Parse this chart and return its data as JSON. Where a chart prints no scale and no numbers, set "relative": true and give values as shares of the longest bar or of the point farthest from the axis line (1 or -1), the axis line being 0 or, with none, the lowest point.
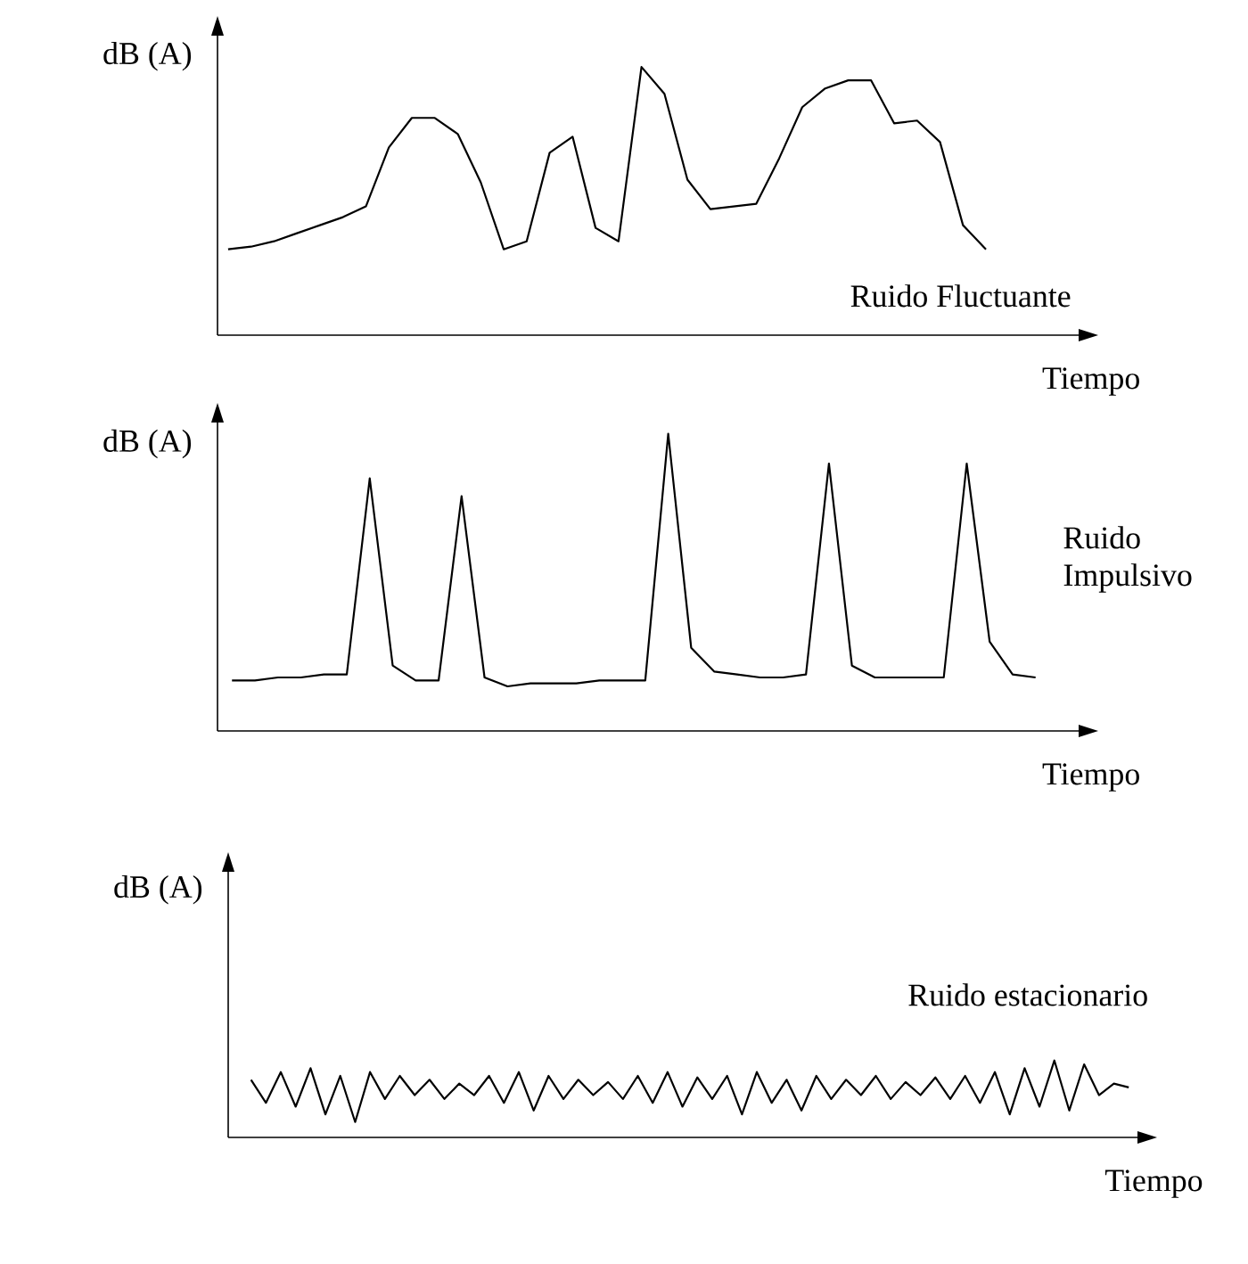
{
  "chart_data": [
    {
      "type": "line",
      "relative": true,
      "ylabel": "dB (A)",
      "xlabel": "Tiempo",
      "categories": [
        null,
        null,
        null,
        null,
        null,
        null,
        null,
        null,
        null,
        null,
        null,
        null,
        null,
        null,
        null,
        null,
        null,
        null,
        null,
        null,
        null,
        null,
        null,
        null,
        null,
        null,
        null,
        null,
        null,
        null,
        null,
        null,
        null,
        null
      ],
      "series": [
        {
          "name": "Ruido Fluctuante",
          "color": "#000000",
          "values": [
            0.32,
            0.33,
            0.35,
            0.38,
            0.41,
            0.44,
            0.48,
            0.7,
            0.81,
            0.81,
            0.75,
            0.57,
            0.32,
            0.35,
            0.68,
            0.74,
            0.4,
            0.35,
            1.0,
            0.9,
            0.58,
            0.47,
            0.48,
            0.49,
            0.66,
            0.85,
            0.92,
            0.95,
            0.95,
            0.79,
            0.8,
            0.72,
            0.41,
            0.32
          ]
        }
      ]
    },
    {
      "type": "line",
      "relative": true,
      "ylabel": "dB (A)",
      "xlabel": "Tiempo",
      "categories": [
        null,
        null,
        null,
        null,
        null,
        null,
        null,
        null,
        null,
        null,
        null,
        null,
        null,
        null,
        null,
        null,
        null,
        null,
        null,
        null,
        null,
        null,
        null,
        null,
        null,
        null,
        null,
        null,
        null,
        null,
        null,
        null,
        null,
        null,
        null,
        null
      ],
      "series": [
        {
          "name": "Ruido Impulsivo",
          "color": "#000000",
          "values": [
            0.17,
            0.17,
            0.18,
            0.18,
            0.19,
            0.19,
            0.85,
            0.22,
            0.17,
            0.17,
            0.79,
            0.18,
            0.15,
            0.16,
            0.16,
            0.16,
            0.17,
            0.17,
            0.17,
            1.0,
            0.28,
            0.2,
            0.19,
            0.18,
            0.18,
            0.19,
            0.9,
            0.22,
            0.18,
            0.18,
            0.18,
            0.18,
            0.9,
            0.3,
            0.19,
            0.18
          ]
        }
      ]
    },
    {
      "type": "line",
      "relative": true,
      "ylabel": "dB (A)",
      "xlabel": "Tiempo",
      "categories": [
        null,
        null,
        null,
        null,
        null,
        null,
        null,
        null,
        null,
        null,
        null,
        null,
        null,
        null,
        null,
        null,
        null,
        null,
        null,
        null,
        null,
        null,
        null,
        null,
        null,
        null,
        null,
        null,
        null,
        null,
        null,
        null,
        null,
        null,
        null,
        null,
        null,
        null,
        null,
        null,
        null,
        null,
        null,
        null,
        null,
        null,
        null,
        null,
        null,
        null,
        null,
        null,
        null,
        null,
        null,
        null,
        null,
        null,
        null,
        null
      ],
      "series": [
        {
          "name": "Ruido estacionario",
          "color": "#000000",
          "values": [
            0.75,
            0.45,
            0.85,
            0.4,
            0.9,
            0.3,
            0.8,
            0.2,
            0.85,
            0.5,
            0.8,
            0.55,
            0.75,
            0.5,
            0.7,
            0.55,
            0.8,
            0.45,
            0.85,
            0.35,
            0.8,
            0.5,
            0.75,
            0.55,
            0.72,
            0.5,
            0.8,
            0.45,
            0.85,
            0.4,
            0.78,
            0.5,
            0.8,
            0.3,
            0.85,
            0.45,
            0.75,
            0.35,
            0.8,
            0.5,
            0.75,
            0.55,
            0.8,
            0.5,
            0.72,
            0.55,
            0.78,
            0.5,
            0.8,
            0.45,
            0.85,
            0.3,
            0.9,
            0.4,
            1.0,
            0.35,
            0.95,
            0.55,
            0.7,
            0.65
          ]
        }
      ]
    }
  ]
}
